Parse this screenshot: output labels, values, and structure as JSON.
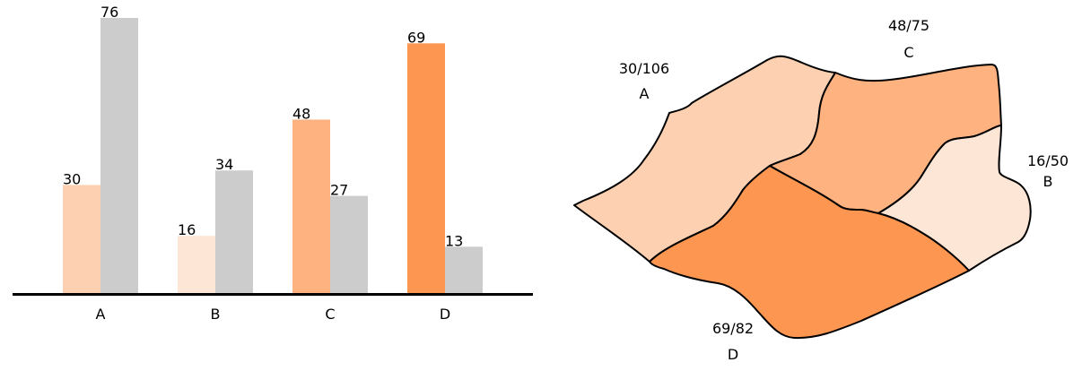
{
  "chart_data": [
    {
      "type": "bar",
      "categories": [
        "A",
        "B",
        "C",
        "D"
      ],
      "series": [
        {
          "values": [
            30,
            16,
            48,
            69
          ],
          "colors": [
            "#fdd0b1",
            "#fee6d7",
            "#fdb27f",
            "#fd9650"
          ]
        },
        {
          "values": [
            76,
            34,
            27,
            13
          ],
          "colors": [
            "#cccccc",
            "#cccccc",
            "#cccccc",
            "#cccccc"
          ]
        }
      ],
      "ylim": [
        0,
        76
      ],
      "grid": false,
      "title": "",
      "xlabel": "",
      "ylabel": ""
    },
    {
      "type": "map",
      "regions": [
        {
          "name": "A",
          "value": 30,
          "total": 106,
          "label": "30/106",
          "color": "#fdd0b1"
        },
        {
          "name": "C",
          "value": 48,
          "total": 75,
          "label": "48/75",
          "color": "#fdb27f"
        },
        {
          "name": "B",
          "value": 16,
          "total": 50,
          "label": "16/50",
          "color": "#fee6d7"
        },
        {
          "name": "D",
          "value": 69,
          "total": 82,
          "label": "69/82",
          "color": "#fd9650"
        }
      ]
    }
  ]
}
